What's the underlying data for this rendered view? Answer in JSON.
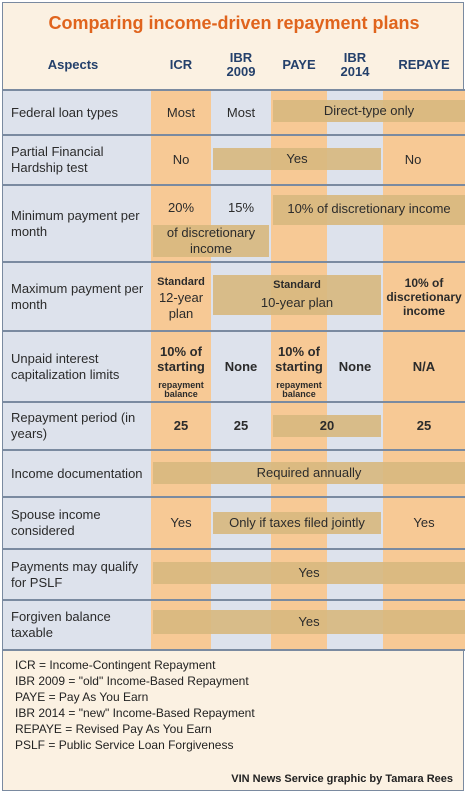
{
  "title": "Comparing income-driven repayment plans",
  "headers": {
    "aspects": "Aspects",
    "icr": "ICR",
    "ibr2009": "IBR 2009",
    "paye": "PAYE",
    "ibr2014": "IBR 2014",
    "repaye": "REPAYE"
  },
  "rows": {
    "federal_loan_types": {
      "label": "Federal loan types",
      "icr": "Most",
      "ibr2009": "Most",
      "band": "Direct-type only"
    },
    "partial_hardship": {
      "label": "Partial Financial Hardship test",
      "icr": "No",
      "band": "Yes",
      "repaye": "No"
    },
    "minimum_payment": {
      "label": "Minimum payment per month",
      "icr": "20%",
      "ibr2009": "15%",
      "band_right": "10% of discretionary income",
      "band_left": "of discretionary income"
    },
    "maximum_payment": {
      "label": "Maximum payment per month",
      "icr_small": "Standard",
      "icr_big": "12-year plan",
      "band_small": "Standard",
      "band_big": "10-year plan",
      "repaye": "10% of discretionary income"
    },
    "unpaid_interest": {
      "label": "Unpaid interest capitalization limits",
      "icr_big": "10% of starting",
      "icr_small": "repayment balance",
      "ibr2009": "None",
      "paye_big": "10% of starting",
      "paye_small": "repayment balance",
      "ibr2014": "None",
      "repaye": "N/A"
    },
    "repayment_period": {
      "label": "Repayment period (in years)",
      "icr": "25",
      "ibr2009": "25",
      "band": "20",
      "repaye": "25"
    },
    "income_documentation": {
      "label": "Income documentation",
      "band": "Required annually"
    },
    "spouse_income": {
      "label": "Spouse income considered",
      "icr": "Yes",
      "band": "Only if taxes filed jointly",
      "repaye": "Yes"
    },
    "pslf": {
      "label": "Payments may qualify for PSLF",
      "band": "Yes"
    },
    "forgiven_taxable": {
      "label": "Forgiven balance taxable",
      "band": "Yes"
    }
  },
  "legend": [
    "ICR = Income-Contingent Repayment",
    "IBR 2009 = \"old\" Income-Based Repayment",
    "PAYE = Pay As You Earn",
    "IBR 2014 = \"new\" Income-Based Repayment",
    "REPAYE = Revised Pay As You Earn",
    "PSLF = Public Service Loan Forgiveness"
  ],
  "credit": "VIN News Service graphic by Tamara Rees",
  "colors": {
    "title": "#e0641d",
    "header": "#24406b",
    "orange_col": "#f7c995",
    "blue_col": "#dde2ec",
    "band": "#d7b87e",
    "background": "#fbf1e2"
  }
}
